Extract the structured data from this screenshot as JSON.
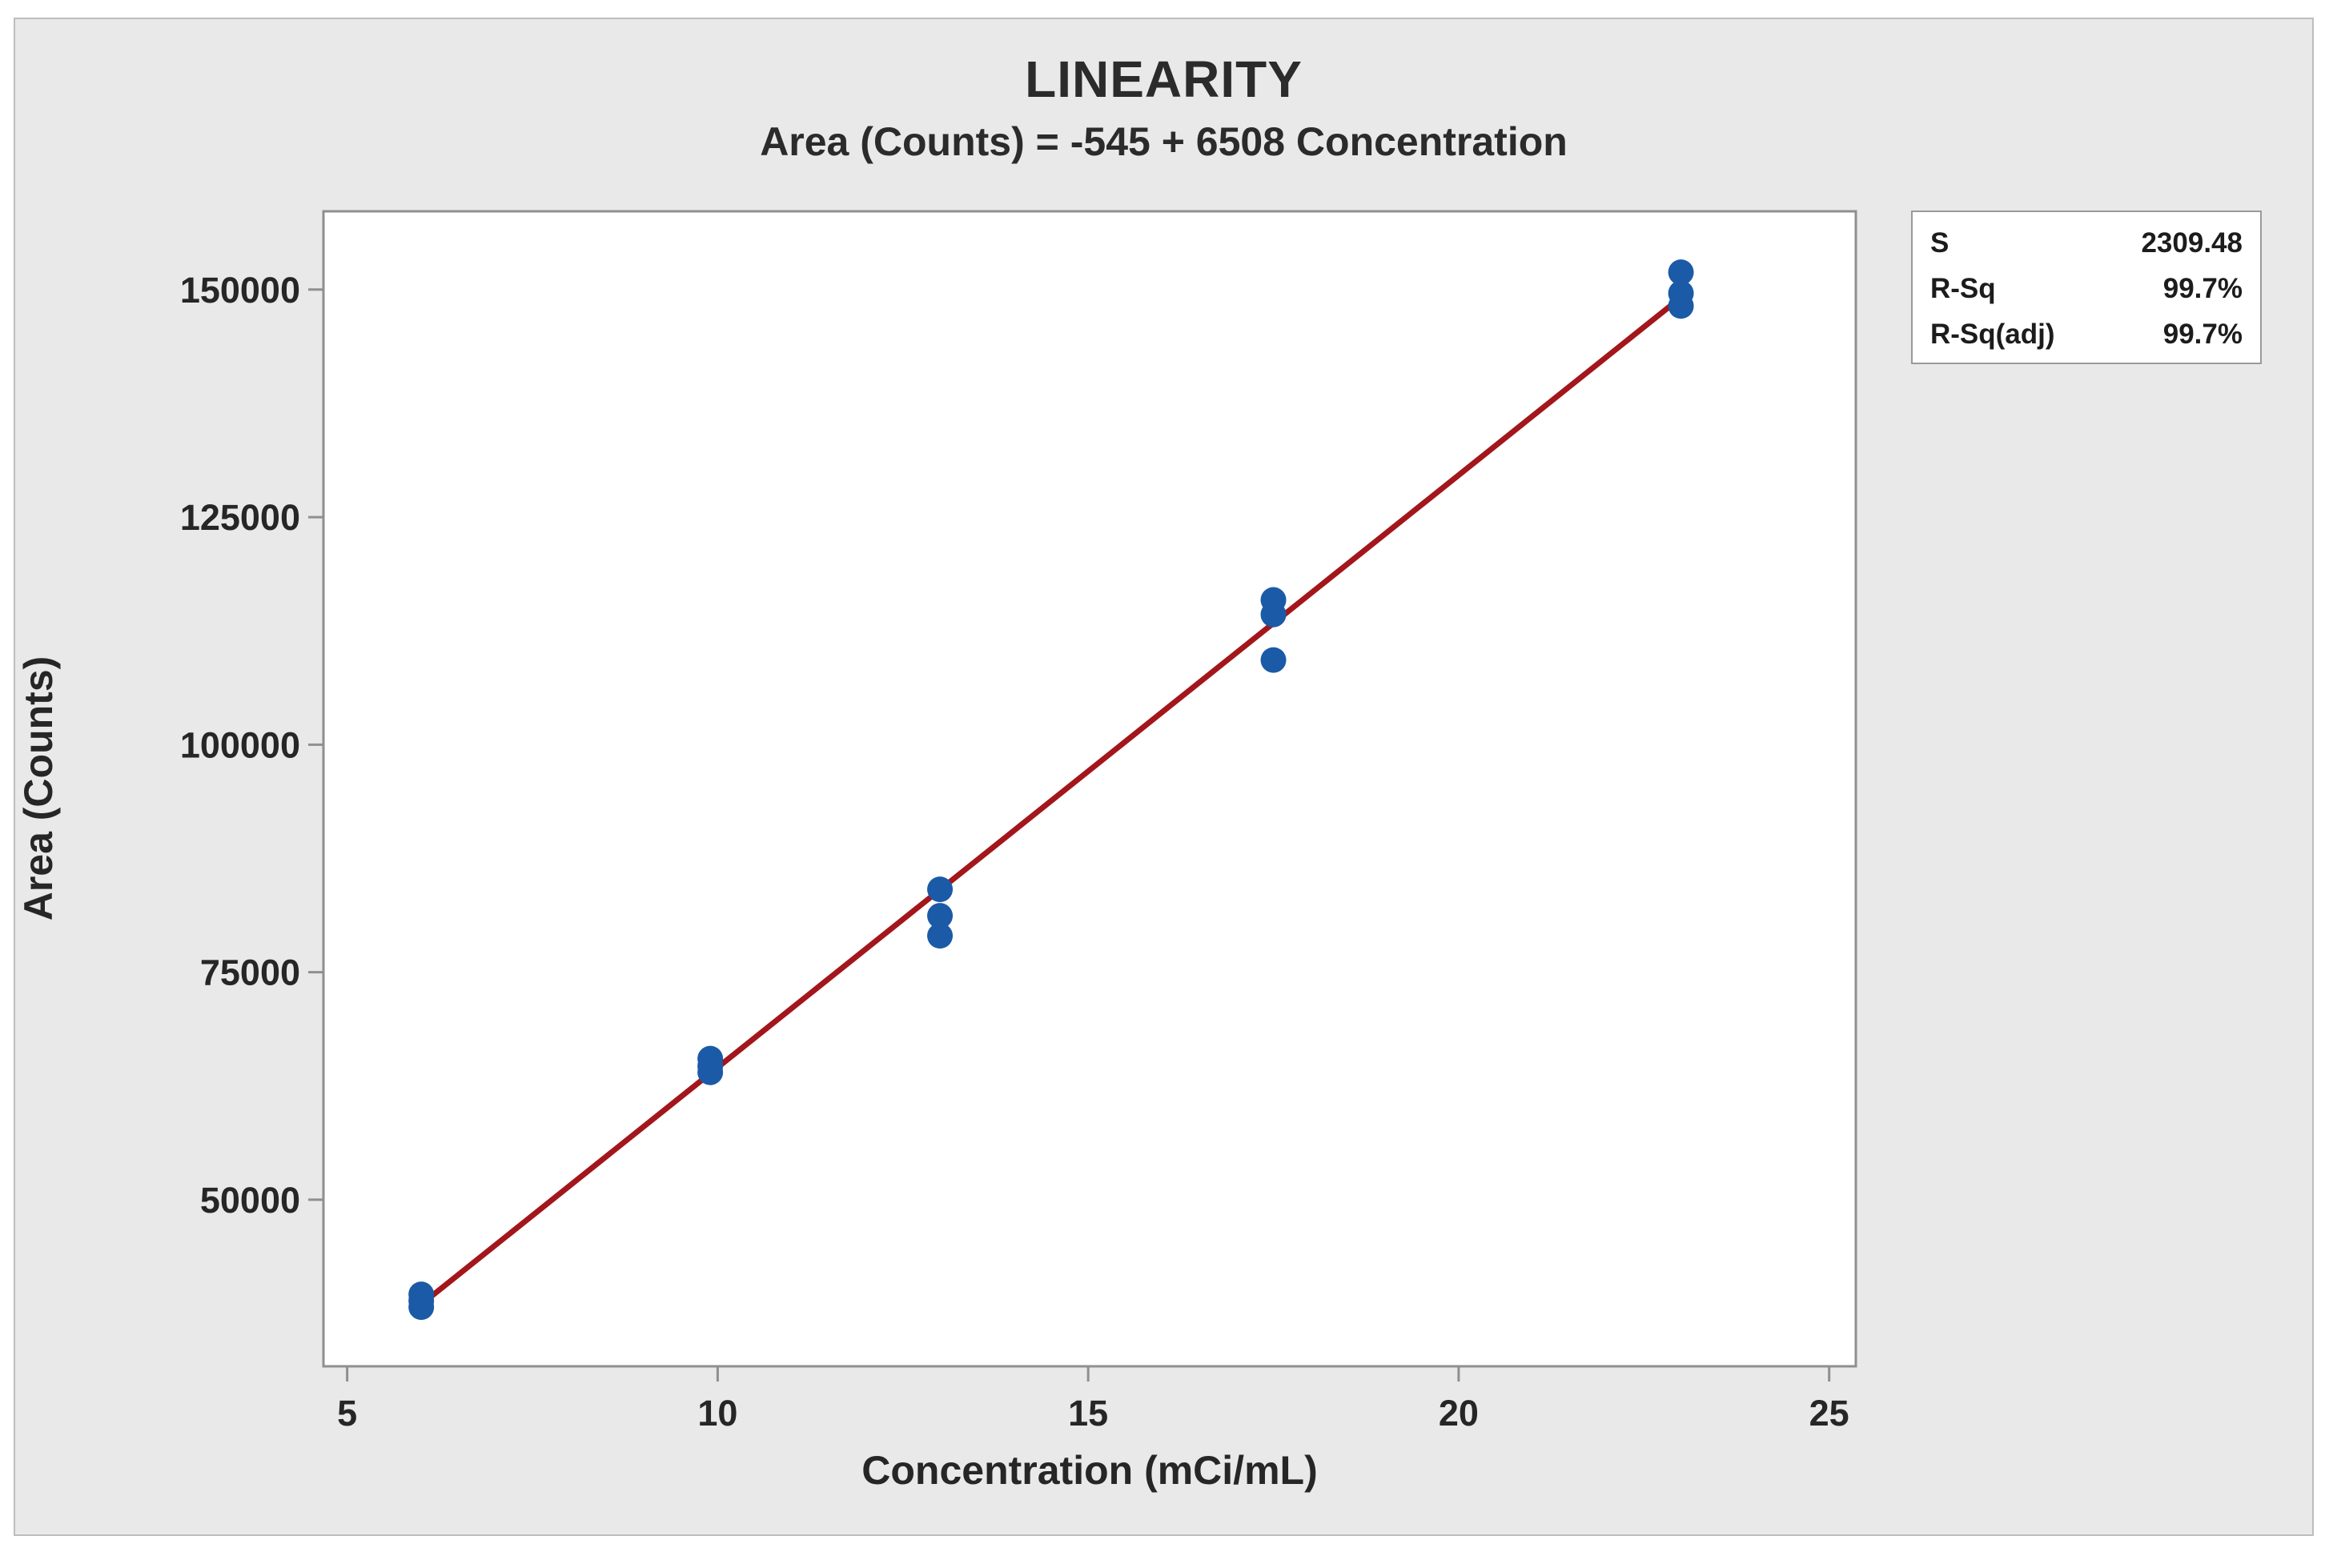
{
  "chart_data": {
    "type": "scatter",
    "title": "LINEARITY",
    "subtitle": "Area (Counts) = -545 + 6508 Concentration",
    "xlabel": "Concentration (mCi/mL)",
    "ylabel": "Area (Counts)",
    "xlim": [
      4.68,
      25.36
    ],
    "ylim": [
      31700,
      158600
    ],
    "x_ticks": [
      5,
      10,
      15,
      20,
      25
    ],
    "y_ticks": [
      50000,
      75000,
      100000,
      125000,
      150000
    ],
    "grid": "off",
    "points": [
      {
        "x": 6.0,
        "y": 39600
      },
      {
        "x": 6.0,
        "y": 38900
      },
      {
        "x": 6.0,
        "y": 38200
      },
      {
        "x": 9.9,
        "y": 65500
      },
      {
        "x": 9.9,
        "y": 64700
      },
      {
        "x": 9.9,
        "y": 64000
      },
      {
        "x": 13.0,
        "y": 84100
      },
      {
        "x": 13.0,
        "y": 81200
      },
      {
        "x": 13.0,
        "y": 79000
      },
      {
        "x": 17.5,
        "y": 115900
      },
      {
        "x": 17.5,
        "y": 114300
      },
      {
        "x": 17.5,
        "y": 109300
      },
      {
        "x": 23.0,
        "y": 151900
      },
      {
        "x": 23.0,
        "y": 149600
      },
      {
        "x": 23.0,
        "y": 148200
      }
    ],
    "fit_line": {
      "intercept": -545,
      "slope": 6508,
      "x_start": 6.0,
      "x_end": 23.0
    },
    "stats": [
      {
        "label": "S",
        "value": "2309.48"
      },
      {
        "label": "R-Sq",
        "value": "99.7%"
      },
      {
        "label": "R-Sq(adj)",
        "value": "99.7%"
      }
    ],
    "colors": {
      "point": "#1b5aa6",
      "line": "#a3161b"
    }
  }
}
